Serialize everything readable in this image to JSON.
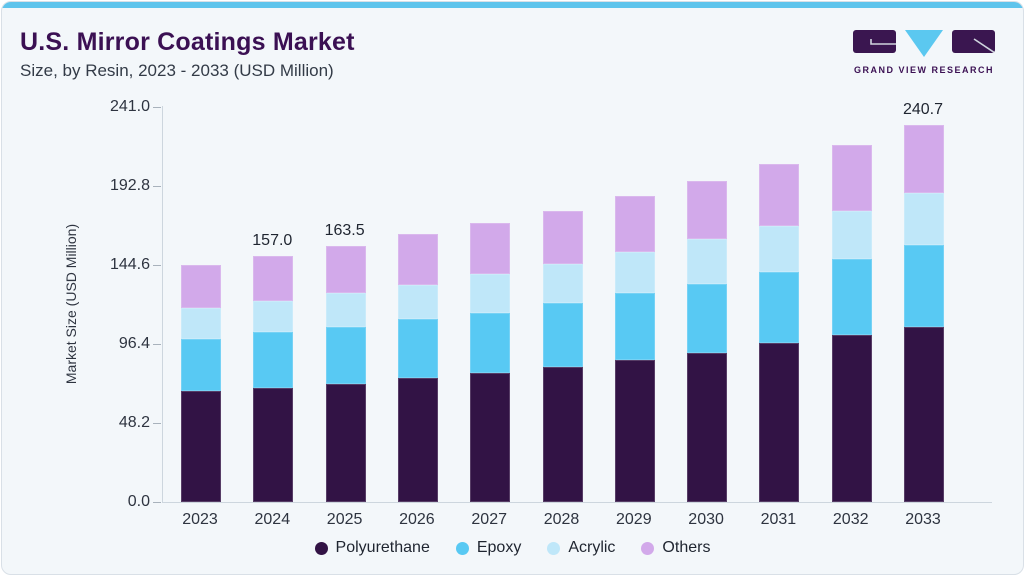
{
  "header": {
    "title": "U.S. Mirror Coatings Market",
    "subtitle": "Size, by Resin, 2023 - 2033 (USD Million)"
  },
  "logo": {
    "text": "GRAND VIEW RESEARCH",
    "shape_color": "#3a1650",
    "triangle_color": "#5bc8f0"
  },
  "colors": {
    "accent_bar": "#5ec4ec",
    "title_text": "#3b1053",
    "body_text": "#2e3440",
    "card_background": "#f3f7fa",
    "axis_line": "#cdd6de"
  },
  "chart_data": {
    "type": "bar",
    "stacked": true,
    "title": "U.S. Mirror Coatings Market",
    "subtitle": "Size, by Resin, 2023 - 2033 (USD Million)",
    "xlabel": "",
    "ylabel": "Market Size (USD Million)",
    "ylim": [
      0,
      241.0
    ],
    "grid": false,
    "legend_position": "bottom",
    "yticks": [
      "0.0",
      "48.2",
      "96.4",
      "144.6",
      "192.8",
      "241.0"
    ],
    "categories": [
      "2023",
      "2024",
      "2025",
      "2026",
      "2027",
      "2028",
      "2029",
      "2030",
      "2031",
      "2032",
      "2033"
    ],
    "series": [
      {
        "name": "Polyurethane",
        "color": "#321345",
        "values": [
          70.8,
          73.0,
          75.3,
          79.1,
          82.3,
          86.1,
          90.6,
          95.1,
          101.4,
          106.5,
          111.7
        ]
      },
      {
        "name": "Epoxy",
        "color": "#58c9f3",
        "values": [
          33.2,
          35.5,
          36.4,
          37.6,
          38.3,
          40.8,
          42.7,
          44.0,
          45.3,
          48.5,
          52.4
        ]
      },
      {
        "name": "Acrylic",
        "color": "#bfe7f9",
        "values": [
          19.8,
          19.8,
          21.7,
          21.7,
          24.9,
          24.9,
          26.2,
          28.7,
          29.3,
          30.6,
          33.2
        ]
      },
      {
        "name": "Others",
        "color": "#d2a9ea",
        "values": [
          27.4,
          28.7,
          30.1,
          32.5,
          32.5,
          33.8,
          35.7,
          37.0,
          39.6,
          42.1,
          43.4
        ]
      }
    ],
    "totals_labeled": {
      "2024": "157.0",
      "2025": "163.5",
      "2033": "240.7"
    }
  }
}
